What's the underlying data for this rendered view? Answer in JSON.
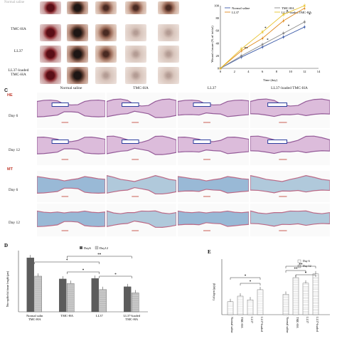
{
  "panelA": {
    "rows": [
      "TMC-HA",
      "LL37",
      "LL37-loaded\nTMC-HA"
    ],
    "top_left_stub": "Normal saline"
  },
  "panelB": {
    "chart_data": {
      "type": "line",
      "xlabel": "Time (day)",
      "ylabel": "Wound closure (% of initial)",
      "x": [
        0,
        3,
        6,
        9,
        12
      ],
      "xticks": [
        0,
        2,
        4,
        6,
        8,
        10,
        12,
        14
      ],
      "yticks": [
        0,
        20,
        40,
        60,
        80,
        100
      ],
      "xlim": [
        0,
        14
      ],
      "ylim": [
        0,
        100
      ],
      "legend_position": "top-left",
      "series": [
        {
          "name": "Normal saline",
          "color": "#3b5aa8",
          "marker": "diamond",
          "values": [
            0,
            18,
            34,
            50,
            66
          ]
        },
        {
          "name": "TMC-HA",
          "color": "#8a8a8a",
          "marker": "square",
          "values": [
            0,
            20,
            38,
            56,
            74
          ]
        },
        {
          "name": "LL37",
          "color": "#e08a1e",
          "marker": "triangle",
          "values": [
            0,
            28,
            48,
            76,
            96
          ]
        },
        {
          "name": "LL37-loaded TMC-HA",
          "color": "#e8c22c",
          "marker": "x",
          "values": [
            0,
            31,
            58,
            86,
            100
          ]
        }
      ],
      "annotations": [
        "**",
        "*",
        "*",
        "*",
        "*",
        "*"
      ]
    }
  },
  "panelC": {
    "label": "C",
    "columns": [
      "Normal saline",
      "TMC-HA",
      "LL37",
      "LL37-loaded TMC-HA"
    ],
    "stains": [
      "HE",
      "MT"
    ],
    "days": [
      "Day 6",
      "Day 12"
    ]
  },
  "panelD": {
    "label": "D",
    "chart_data": {
      "type": "bar",
      "ylabel": "Neo-epithelial tissue length (μm)",
      "categories": [
        "Normal saline",
        "TMC-HA",
        "LL37",
        "LL37-loaded TMC-HA"
      ],
      "legend_position": "top",
      "series": [
        {
          "name": "Day6",
          "color": "#5c5c5c",
          "values": [
            970,
            590,
            600,
            450
          ]
        },
        {
          "name": "Day12",
          "color": "#c8c8c8",
          "values": [
            640,
            510,
            400,
            340
          ]
        }
      ],
      "ylim": [
        0,
        1100
      ],
      "significance": [
        "*",
        "*",
        "*",
        "**",
        "*"
      ]
    }
  },
  "panelE": {
    "label": "E",
    "chart_data": {
      "type": "bar",
      "ylabel": "Collagen (μg/g)",
      "legend_position": "top",
      "groups": [
        {
          "categories": [
            "Normal saline",
            "TMC-HA",
            "LL37",
            "LL37-loaded"
          ],
          "series": "Day 6",
          "values": [
            14,
            20,
            16,
            27
          ]
        },
        {
          "categories": [
            "Normal saline",
            "TMC-HA",
            "LL37",
            "LL37-loaded"
          ],
          "series": "Day 12",
          "values": [
            22,
            40,
            34,
            44
          ]
        }
      ],
      "series": [
        {
          "name": "Day 6",
          "color": "#ffffff"
        },
        {
          "name": "Day 12",
          "color": "#ffffff"
        }
      ],
      "ylim": [
        0,
        60
      ],
      "significance": [
        "*",
        "*",
        "**",
        "*",
        "**"
      ]
    }
  }
}
